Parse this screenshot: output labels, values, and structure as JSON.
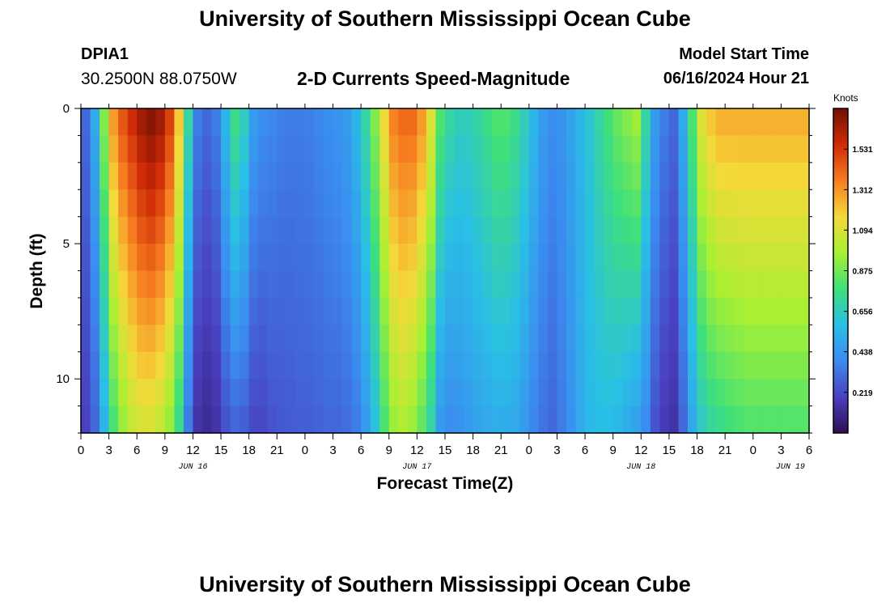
{
  "header": {
    "title": "University of Southern Mississippi Ocean Cube",
    "station": "DPIA1",
    "coords": "30.2500N  88.0750W",
    "subtitle": "2-D Currents Speed-Magnitude",
    "model_start_label": "Model Start Time",
    "model_start_value": "06/16/2024 Hour 21"
  },
  "footer": {
    "title": "University of Southern Mississippi Ocean Cube"
  },
  "chart_data": {
    "type": "heatmap",
    "title": "2-D Currents Speed-Magnitude",
    "xlabel": "Forecast Time(Z)",
    "ylabel": "Depth (ft)",
    "x_tick_labels": [
      "0",
      "3",
      "6",
      "9",
      "12",
      "15",
      "18",
      "21",
      "0",
      "3",
      "6",
      "9",
      "12",
      "15",
      "18",
      "21",
      "0",
      "3",
      "6",
      "9",
      "12",
      "15",
      "18",
      "21",
      "0",
      "3",
      "6"
    ],
    "x_day_labels": [
      "JUN 16",
      "JUN 17",
      "JUN 18",
      "JUN 19"
    ],
    "x_range_hours": [
      0,
      78
    ],
    "y_ticks": [
      0,
      5,
      10
    ],
    "y_range_ft": [
      0,
      12
    ],
    "y_inverted": true,
    "colorbar": {
      "units": "Knots",
      "range": [
        0,
        1.75
      ],
      "ticks": [
        "1.531",
        "1.312",
        "1.094",
        "0.875",
        "0.656",
        "0.438",
        "0.219"
      ],
      "tick_values": [
        1.531,
        1.312,
        1.094,
        0.875,
        0.656,
        0.438,
        0.219
      ],
      "colors": [
        "#2b0f54",
        "#4a3fbf",
        "#3b8bf0",
        "#29bfe6",
        "#3fe07a",
        "#a8f032",
        "#f4d93a",
        "#f77d20",
        "#cf2a06",
        "#720f05"
      ]
    },
    "time_hours": [
      0,
      1,
      2,
      3,
      4,
      5,
      6,
      7,
      8,
      9,
      10,
      11,
      12,
      13,
      14,
      15,
      16,
      17,
      18,
      19,
      20,
      21,
      22,
      23,
      24,
      25,
      26,
      27,
      28,
      29,
      30,
      31,
      32,
      33,
      34,
      35,
      36,
      37,
      38,
      39,
      40,
      41,
      42,
      43,
      44,
      45,
      46,
      47,
      48,
      49,
      50,
      51,
      52,
      53,
      54,
      55,
      56,
      57,
      58,
      59,
      60,
      61,
      62,
      63,
      64,
      65,
      66,
      67,
      68,
      69,
      70,
      71,
      72,
      73,
      74,
      75,
      76,
      77
    ],
    "surface_speed_knots": [
      0.3,
      0.5,
      0.9,
      1.3,
      1.45,
      1.55,
      1.65,
      1.7,
      1.65,
      1.5,
      1.2,
      0.7,
      0.35,
      0.3,
      0.35,
      0.55,
      0.75,
      0.65,
      0.45,
      0.4,
      0.38,
      0.36,
      0.35,
      0.35,
      0.36,
      0.38,
      0.4,
      0.42,
      0.45,
      0.55,
      0.7,
      0.9,
      1.15,
      1.35,
      1.4,
      1.4,
      1.3,
      1.1,
      0.8,
      0.7,
      0.66,
      0.66,
      0.7,
      0.75,
      0.8,
      0.8,
      0.75,
      0.66,
      0.55,
      0.45,
      0.4,
      0.42,
      0.48,
      0.55,
      0.62,
      0.7,
      0.78,
      0.85,
      0.9,
      0.95,
      0.7,
      0.45,
      0.35,
      0.3,
      0.5,
      0.8,
      1.1,
      1.2,
      1.25,
      1.25,
      1.25,
      1.25,
      1.25,
      1.25,
      1.25,
      1.25,
      1.25,
      1.25
    ],
    "deep_speed_knots": [
      0.2,
      0.3,
      0.55,
      0.8,
      0.95,
      1.05,
      1.1,
      1.1,
      1.05,
      0.95,
      0.75,
      0.35,
      0.15,
      0.12,
      0.15,
      0.25,
      0.3,
      0.28,
      0.22,
      0.22,
      0.25,
      0.26,
      0.27,
      0.28,
      0.28,
      0.29,
      0.3,
      0.3,
      0.32,
      0.35,
      0.45,
      0.6,
      0.8,
      0.95,
      1.0,
      0.95,
      0.85,
      0.7,
      0.45,
      0.4,
      0.42,
      0.45,
      0.48,
      0.5,
      0.52,
      0.52,
      0.5,
      0.45,
      0.38,
      0.33,
      0.3,
      0.35,
      0.42,
      0.5,
      0.56,
      0.58,
      0.58,
      0.56,
      0.52,
      0.48,
      0.4,
      0.25,
      0.18,
      0.15,
      0.3,
      0.5,
      0.65,
      0.72,
      0.75,
      0.78,
      0.8,
      0.82,
      0.82,
      0.82,
      0.82,
      0.82,
      0.82,
      0.82
    ]
  }
}
